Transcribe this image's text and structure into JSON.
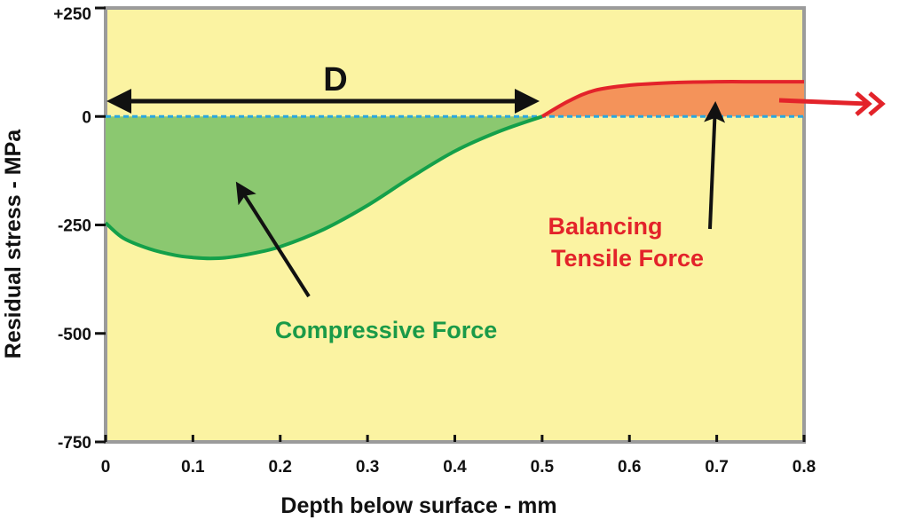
{
  "chart_data": {
    "type": "area",
    "xlabel": "Depth below surface - mm",
    "ylabel": "Residual stress - MPa",
    "xlim": [
      0,
      0.8
    ],
    "ylim": [
      -750,
      250
    ],
    "x_ticks": [
      "0",
      "0.1",
      "0.2",
      "0.3",
      "0.4",
      "0.5",
      "0.6",
      "0.7",
      "0.8"
    ],
    "y_ticks": [
      "+250",
      "0",
      "-250",
      "-500",
      "-750"
    ],
    "series": [
      {
        "x": [
          0,
          0.02,
          0.05,
          0.08,
          0.1,
          0.12,
          0.14,
          0.17,
          0.2,
          0.25,
          0.3,
          0.35,
          0.4,
          0.45,
          0.5
        ],
        "values": [
          -245,
          -280,
          -305,
          -320,
          -325,
          -327,
          -325,
          -315,
          -300,
          -260,
          -205,
          -140,
          -80,
          -35,
          0
        ]
      },
      {
        "x": [
          0.5,
          0.53,
          0.56,
          0.6,
          0.65,
          0.7,
          0.75,
          0.8
        ],
        "values": [
          0,
          35,
          60,
          72,
          78,
          80,
          80,
          80
        ]
      }
    ],
    "colors": {
      "background": "#fbf3a2",
      "frame": "#9b9b9b",
      "compressive_fill": "#8bc870",
      "compressive_line": "#14a04a",
      "tensile_fill": "#f4935a",
      "tensile_line": "#e3232a",
      "zero_line": "#2aa7df",
      "arrow": "#111111"
    },
    "annotations": {
      "D": "D",
      "compressive": "Compressive Force",
      "tensile_line1": "Balancing",
      "tensile_line2": "Tensile Force"
    },
    "legend": "none",
    "grid": false
  }
}
